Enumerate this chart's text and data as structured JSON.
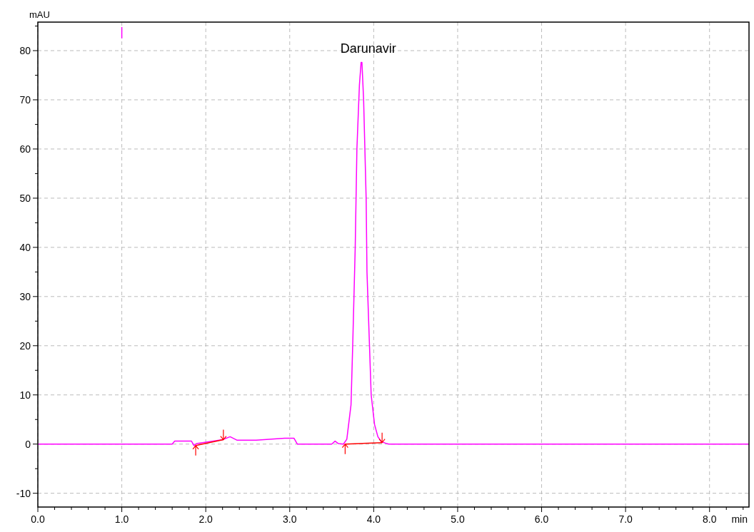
{
  "chart_data": {
    "type": "line",
    "ylabel": "mAU",
    "xlabel": "min",
    "xlim": [
      0,
      8.47
    ],
    "ylim": [
      -12.8,
      85.8
    ],
    "xticks": [
      {
        "value": 0,
        "label": "0.0"
      },
      {
        "value": 0.2,
        "label": null
      },
      {
        "value": 0.4,
        "label": null
      },
      {
        "value": 0.6,
        "label": null
      },
      {
        "value": 0.8,
        "label": null
      },
      {
        "value": 1,
        "label": "1.0"
      },
      {
        "value": 1.2,
        "label": null
      },
      {
        "value": 1.4,
        "label": null
      },
      {
        "value": 1.6,
        "label": null
      },
      {
        "value": 1.8,
        "label": null
      },
      {
        "value": 2,
        "label": "2.0"
      },
      {
        "value": 2.2,
        "label": null
      },
      {
        "value": 2.4,
        "label": null
      },
      {
        "value": 2.6,
        "label": null
      },
      {
        "value": 2.8,
        "label": null
      },
      {
        "value": 3,
        "label": "3.0"
      },
      {
        "value": 3.2,
        "label": null
      },
      {
        "value": 3.4,
        "label": null
      },
      {
        "value": 3.6,
        "label": null
      },
      {
        "value": 3.8,
        "label": null
      },
      {
        "value": 4,
        "label": "4.0"
      },
      {
        "value": 4.2,
        "label": null
      },
      {
        "value": 4.4,
        "label": null
      },
      {
        "value": 4.6,
        "label": null
      },
      {
        "value": 4.8,
        "label": null
      },
      {
        "value": 5,
        "label": "5.0"
      },
      {
        "value": 5.2,
        "label": null
      },
      {
        "value": 5.4,
        "label": null
      },
      {
        "value": 5.6,
        "label": null
      },
      {
        "value": 5.8,
        "label": null
      },
      {
        "value": 6,
        "label": "6.0"
      },
      {
        "value": 6.2,
        "label": null
      },
      {
        "value": 6.4,
        "label": null
      },
      {
        "value": 6.6,
        "label": null
      },
      {
        "value": 6.8,
        "label": null
      },
      {
        "value": 7,
        "label": "7.0"
      },
      {
        "value": 7.2,
        "label": null
      },
      {
        "value": 7.4,
        "label": null
      },
      {
        "value": 7.6,
        "label": null
      },
      {
        "value": 7.8,
        "label": null
      },
      {
        "value": 8,
        "label": "8.0"
      },
      {
        "value": 8.2,
        "label": null
      },
      {
        "value": 8.4,
        "label": null
      }
    ],
    "yticks": [
      -10,
      {
        "value": -5,
        "label": null
      },
      0,
      {
        "value": 5,
        "label": null
      },
      10,
      {
        "value": 15,
        "label": null
      },
      20,
      {
        "value": 25,
        "label": null
      },
      30,
      {
        "value": 35,
        "label": null
      },
      40,
      {
        "value": 45,
        "label": null
      },
      50,
      {
        "value": 55,
        "label": null
      },
      60,
      {
        "value": 65,
        "label": null
      },
      70,
      {
        "value": 75,
        "label": null
      },
      80,
      {
        "value": 85,
        "label": null
      }
    ],
    "grid": true,
    "line_style": "solid",
    "annotations": [
      "Darunavir"
    ],
    "series": [
      {
        "color": "#ff00ff",
        "x": [
          0,
          1.6,
          1.63,
          1.83,
          1.86,
          1.89,
          2.09,
          2.2,
          2.29,
          2.37,
          2.6,
          2.94,
          3.05,
          3.09,
          3.5,
          3.54,
          3.58,
          3.64,
          3.68,
          3.73,
          3.75,
          3.78,
          3.8,
          3.83,
          3.85,
          3.86,
          3.88,
          3.91,
          3.92,
          3.95,
          3.97,
          4.01,
          4.05,
          4.09,
          4.14,
          4.18,
          8.47
        ],
        "values": [
          0,
          0,
          0.6,
          0.6,
          -0.3,
          0.1,
          0.6,
          0.9,
          1.5,
          0.8,
          0.8,
          1.2,
          1.2,
          0,
          0,
          0.6,
          0.1,
          0,
          1,
          8,
          20,
          40,
          60,
          73,
          77.6,
          77.6,
          70,
          50,
          35,
          20,
          10,
          4,
          1.5,
          0.5,
          0.2,
          0,
          0
        ]
      },
      {
        "color": "#ff00ff",
        "x": [
          1.0,
          1.0
        ],
        "values": [
          82.5,
          84.8
        ]
      },
      {
        "color": "#ff0000",
        "marker": "cross",
        "x": [
          1.88,
          2.21
        ],
        "values": [
          -0.3,
          0.9
        ]
      },
      {
        "color": "#ff0000",
        "marker": "cross",
        "x": [
          3.66,
          4.1
        ],
        "values": [
          0,
          0.3
        ]
      }
    ]
  }
}
